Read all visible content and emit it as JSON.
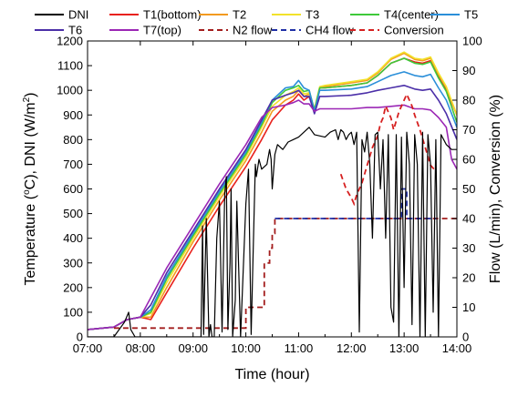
{
  "chart_data": {
    "type": "line",
    "xlabel": "Time (hour)",
    "ylabel_left_parts": [
      "Temperature (",
      "o",
      "C), DNI (W/m",
      "2",
      ")"
    ],
    "ylabel_right": "Flow (L/min), Conversion (%)",
    "x_ticks": [
      "07:00",
      "08:00",
      "09:00",
      "10:00",
      "11:00",
      "12:00",
      "13:00",
      "14:00"
    ],
    "xlim_hours": [
      7,
      14
    ],
    "y_left_lim": [
      0,
      1200
    ],
    "y_left_ticks": [
      0,
      100,
      200,
      300,
      400,
      500,
      600,
      700,
      800,
      900,
      1000,
      1100,
      1200
    ],
    "y_right_lim": [
      0,
      100
    ],
    "y_right_ticks": [
      0,
      10,
      20,
      30,
      40,
      50,
      60,
      70,
      80,
      90,
      100
    ],
    "grid": false,
    "legend_position": "top",
    "temperature_series": [
      {
        "name": "T1(bottom)",
        "color": "#e8211c",
        "x": [
          7.0,
          7.5,
          7.75,
          8.0,
          8.2,
          8.5,
          9.0,
          9.5,
          10.0,
          10.3,
          10.5,
          10.75,
          10.9,
          11.0,
          11.1,
          11.2,
          11.3,
          11.4,
          11.5,
          12.0,
          12.3,
          12.5,
          12.75,
          13.0,
          13.2,
          13.35,
          13.5,
          13.65,
          13.8,
          14.0
        ],
        "y": [
          30,
          40,
          70,
          80,
          70,
          180,
          360,
          530,
          690,
          800,
          880,
          940,
          960,
          985,
          960,
          975,
          920,
          1010,
          1010,
          1020,
          1030,
          1060,
          1110,
          1130,
          1115,
          1110,
          1120,
          1055,
          1000,
          900
        ]
      },
      {
        "name": "T2",
        "color": "#f39a1f",
        "x": [
          7.0,
          7.5,
          7.75,
          8.0,
          8.2,
          8.5,
          9.0,
          9.5,
          10.0,
          10.3,
          10.5,
          10.75,
          10.9,
          11.0,
          11.1,
          11.2,
          11.3,
          11.4,
          11.5,
          12.0,
          12.3,
          12.5,
          12.75,
          13.0,
          13.2,
          13.35,
          13.5,
          13.65,
          13.8,
          14.0
        ],
        "y": [
          30,
          40,
          70,
          80,
          80,
          200,
          385,
          555,
          715,
          830,
          915,
          960,
          975,
          1000,
          975,
          985,
          925,
          1010,
          1015,
          1030,
          1040,
          1070,
          1125,
          1150,
          1125,
          1120,
          1130,
          1065,
          1010,
          900
        ]
      },
      {
        "name": "T3",
        "color": "#f2e22b",
        "x": [
          7.0,
          7.5,
          7.75,
          8.0,
          8.2,
          8.5,
          9.0,
          9.5,
          10.0,
          10.3,
          10.5,
          10.75,
          10.9,
          11.0,
          11.1,
          11.2,
          11.3,
          11.4,
          11.5,
          12.0,
          12.3,
          12.5,
          12.75,
          13.0,
          13.2,
          13.35,
          13.5,
          13.65,
          13.8,
          14.0
        ],
        "y": [
          30,
          40,
          70,
          80,
          95,
          220,
          400,
          570,
          730,
          850,
          935,
          980,
          995,
          1010,
          985,
          990,
          925,
          1015,
          1020,
          1035,
          1045,
          1075,
          1130,
          1155,
          1130,
          1125,
          1135,
          1070,
          1015,
          900
        ]
      },
      {
        "name": "T4(center)",
        "color": "#3ec93a",
        "x": [
          7.0,
          7.5,
          7.75,
          8.0,
          8.2,
          8.5,
          9.0,
          9.5,
          10.0,
          10.3,
          10.5,
          10.75,
          10.9,
          11.0,
          11.1,
          11.2,
          11.3,
          11.4,
          11.5,
          12.0,
          12.3,
          12.5,
          12.75,
          13.0,
          13.2,
          13.35,
          13.5,
          13.65,
          13.8,
          14.0
        ],
        "y": [
          30,
          40,
          70,
          80,
          100,
          235,
          410,
          580,
          740,
          860,
          950,
          1000,
          1010,
          1020,
          995,
          1000,
          920,
          1010,
          1010,
          1020,
          1030,
          1060,
          1110,
          1130,
          1110,
          1105,
          1115,
          1050,
          995,
          870
        ]
      },
      {
        "name": "T5",
        "color": "#2b8fd9",
        "x": [
          7.0,
          7.5,
          7.75,
          8.0,
          8.2,
          8.5,
          9.0,
          9.5,
          10.0,
          10.3,
          10.5,
          10.75,
          10.9,
          11.0,
          11.1,
          11.2,
          11.3,
          11.4,
          11.5,
          12.0,
          12.3,
          12.5,
          12.75,
          13.0,
          13.2,
          13.35,
          13.5,
          13.65,
          13.8,
          14.0
        ],
        "y": [
          30,
          40,
          70,
          80,
          110,
          245,
          420,
          590,
          750,
          870,
          960,
          1010,
          1015,
          1040,
          1010,
          1000,
          915,
          1000,
          1000,
          1005,
          1015,
          1035,
          1060,
          1075,
          1060,
          1055,
          1065,
          1010,
          960,
          850
        ]
      },
      {
        "name": "T6",
        "color": "#4b2fa8",
        "x": [
          7.0,
          7.5,
          7.75,
          8.0,
          8.2,
          8.5,
          9.0,
          9.5,
          10.0,
          10.3,
          10.5,
          10.75,
          10.9,
          11.0,
          11.1,
          11.2,
          11.3,
          11.4,
          11.5,
          12.0,
          12.3,
          12.5,
          12.75,
          13.0,
          13.2,
          13.35,
          13.5,
          13.65,
          13.8,
          14.0
        ],
        "y": [
          30,
          40,
          70,
          80,
          130,
          260,
          430,
          600,
          760,
          880,
          960,
          980,
          990,
          1000,
          975,
          975,
          905,
          975,
          975,
          980,
          990,
          1000,
          1010,
          1020,
          1005,
          1000,
          1005,
          960,
          905,
          800
        ]
      },
      {
        "name": "T7(top)",
        "color": "#9b27b5",
        "x": [
          7.0,
          7.5,
          7.75,
          8.0,
          8.2,
          8.5,
          9.0,
          9.5,
          10.0,
          10.3,
          10.5,
          10.75,
          10.9,
          11.0,
          11.1,
          11.2,
          11.3,
          11.4,
          11.5,
          12.0,
          12.3,
          12.5,
          12.75,
          13.0,
          13.2,
          13.35,
          13.5,
          13.65,
          13.8,
          13.9,
          14.0
        ],
        "y": [
          30,
          40,
          70,
          80,
          160,
          280,
          450,
          620,
          780,
          890,
          930,
          940,
          950,
          960,
          945,
          945,
          915,
          925,
          925,
          925,
          930,
          930,
          935,
          940,
          925,
          925,
          920,
          890,
          850,
          720,
          680
        ]
      }
    ],
    "dni_series": {
      "name": "DNI",
      "color": "#000000",
      "x": [
        7.0,
        7.5,
        7.55,
        7.7,
        7.78,
        7.82,
        7.9,
        8.0,
        8.1,
        8.5,
        9.0,
        9.15,
        9.18,
        9.2,
        9.22,
        9.25,
        9.3,
        9.33,
        9.36,
        9.4,
        9.45,
        9.5,
        9.55,
        9.6,
        9.63,
        9.66,
        9.7,
        9.72,
        9.75,
        9.8,
        9.83,
        9.9,
        10.0,
        10.05,
        10.1,
        10.15,
        10.18,
        10.2,
        10.25,
        10.3,
        10.4,
        10.45,
        10.48,
        10.5,
        10.55,
        10.6,
        10.7,
        10.8,
        10.9,
        11.0,
        11.1,
        11.2,
        11.3,
        11.5,
        11.6,
        11.7,
        11.75,
        11.8,
        11.85,
        11.9,
        11.95,
        12.0,
        12.05,
        12.1,
        12.15,
        12.2,
        12.25,
        12.3,
        12.35,
        12.4,
        12.45,
        12.5,
        12.55,
        12.6,
        12.65,
        12.7,
        12.75,
        12.8,
        12.85,
        12.9,
        12.95,
        13.0,
        13.05,
        13.1,
        13.15,
        13.2,
        13.25,
        13.3,
        13.35,
        13.4,
        13.45,
        13.5,
        13.55,
        13.6,
        13.65,
        13.7,
        13.75,
        13.8,
        13.9,
        14.0
      ],
      "y": [
        0,
        0,
        15,
        60,
        100,
        30,
        0,
        0,
        0,
        0,
        0,
        0,
        450,
        10,
        200,
        480,
        0,
        50,
        0,
        0,
        400,
        550,
        20,
        580,
        650,
        30,
        300,
        600,
        0,
        150,
        550,
        0,
        540,
        680,
        10,
        450,
        700,
        650,
        720,
        680,
        700,
        760,
        720,
        600,
        740,
        780,
        760,
        790,
        800,
        810,
        830,
        850,
        820,
        810,
        830,
        840,
        800,
        840,
        830,
        800,
        820,
        830,
        780,
        830,
        20,
        800,
        750,
        830,
        700,
        400,
        820,
        830,
        600,
        800,
        400,
        820,
        120,
        60,
        820,
        0,
        810,
        200,
        830,
        700,
        50,
        820,
        700,
        0,
        830,
        0,
        820,
        700,
        100,
        800,
        0,
        820,
        800,
        780,
        760,
        760
      ]
    },
    "n2_flow": {
      "name": "N2 flow",
      "color": "#a31d1d",
      "x": [
        7.5,
        10.0,
        10.0,
        10.35,
        10.35,
        10.45,
        10.45,
        10.5,
        10.5,
        10.55,
        10.55,
        14.0
      ],
      "y": [
        3,
        3,
        10,
        10,
        25,
        25,
        30,
        30,
        35,
        35,
        40,
        40
      ]
    },
    "ch4_flow": {
      "name": "CH4 flow",
      "color": "#1f2fa5",
      "x": [
        10.55,
        12.95,
        12.95,
        13.05,
        13.05,
        13.6
      ],
      "y": [
        40,
        40,
        50,
        50,
        40,
        40
      ]
    },
    "conversion": {
      "name": "Conversion",
      "color": "#d62020",
      "x": [
        11.8,
        11.9,
        12.0,
        12.05,
        12.1,
        12.2,
        12.3,
        12.4,
        12.5,
        12.55,
        12.6,
        12.65,
        12.7,
        12.75,
        12.8,
        12.9,
        12.95,
        13.0,
        13.05,
        13.1,
        13.15,
        13.2,
        13.3,
        13.4,
        13.5,
        13.6
      ],
      "y": [
        55,
        50,
        47,
        45,
        48,
        52,
        58,
        64,
        68,
        72,
        74,
        78,
        76,
        74,
        70,
        76,
        78,
        80,
        82,
        80,
        78,
        75,
        70,
        64,
        58,
        56
      ]
    },
    "legend": [
      {
        "label": "DNI",
        "color": "#000000",
        "dash": "solid",
        "row": 0
      },
      {
        "label": "T1(bottom)",
        "color": "#e8211c",
        "dash": "solid",
        "row": 0
      },
      {
        "label": "T2",
        "color": "#f39a1f",
        "dash": "solid",
        "row": 0
      },
      {
        "label": "T3",
        "color": "#f2e22b",
        "dash": "solid",
        "row": 0
      },
      {
        "label": "T4(center)",
        "color": "#3ec93a",
        "dash": "solid",
        "row": 0
      },
      {
        "label": "T5",
        "color": "#2b8fd9",
        "dash": "solid",
        "row": 0
      },
      {
        "label": "T6",
        "color": "#4b2fa8",
        "dash": "solid",
        "row": 1
      },
      {
        "label": "T7(top)",
        "color": "#9b27b5",
        "dash": "solid",
        "row": 1
      },
      {
        "label": "N2 flow",
        "color": "#a31d1d",
        "dash": "dashed",
        "row": 1
      },
      {
        "label": "CH4 flow",
        "color": "#1f2fa5",
        "dash": "dashed",
        "row": 1
      },
      {
        "label": "Conversion",
        "color": "#d62020",
        "dash": "dashed",
        "row": 1
      }
    ]
  }
}
